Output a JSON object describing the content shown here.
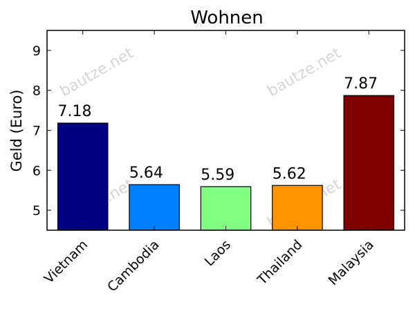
{
  "chart_data": {
    "type": "bar",
    "title": "Wohnen",
    "xlabel": "",
    "ylabel": "Geld (Euro)",
    "categories": [
      "Vietnam",
      "Cambodia",
      "Laos",
      "Thailand",
      "Malaysia"
    ],
    "values": [
      7.18,
      5.64,
      5.59,
      5.62,
      7.87
    ],
    "value_labels": [
      "7.18",
      "5.64",
      "5.59",
      "5.62",
      "7.87"
    ],
    "colors": [
      "#000080",
      "#0080ff",
      "#80ff80",
      "#ff9400",
      "#800000"
    ],
    "ylim": [
      4.5,
      9.5
    ],
    "yticks": [
      5,
      6,
      7,
      8,
      9
    ],
    "grid": false,
    "legend": "none"
  },
  "watermark": "bautze.net"
}
